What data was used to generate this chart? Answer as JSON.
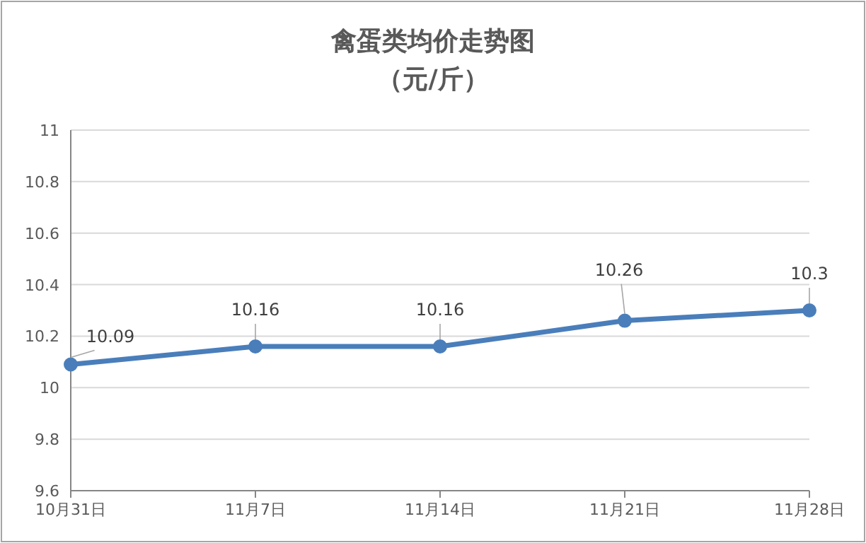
{
  "chart_data": {
    "type": "line",
    "title": "禽蛋类均价走势图",
    "subtitle": "（元/斤）",
    "categories": [
      "10月31日",
      "11月7日",
      "11月14日",
      "11月21日",
      "11月28日"
    ],
    "series": [
      {
        "color": "#4a7ebb",
        "values": [
          10.09,
          10.16,
          10.16,
          10.26,
          10.3
        ]
      }
    ],
    "ylim": [
      9.6,
      11
    ],
    "yticks": [
      9.6,
      9.8,
      10,
      10.2,
      10.4,
      10.6,
      10.8,
      11
    ],
    "grid": "y",
    "marker": "circle",
    "line_style": "solid",
    "data_labels": true
  }
}
